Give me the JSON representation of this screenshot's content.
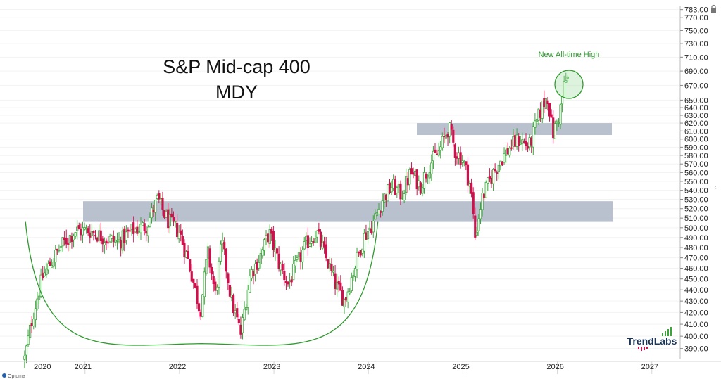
{
  "chart_data": {
    "type": "candlestick",
    "title": "S&P Mid-cap 400",
    "subtitle": "MDY",
    "annotation": "New All-time High",
    "brand": "TrendLabs",
    "footer": "Optuma",
    "x_axis": {
      "labels": [
        "2020",
        "2021",
        "2022",
        "2023",
        "2024",
        "2025",
        "2026",
        "2027"
      ],
      "range": [
        2020.1,
        2027.3
      ]
    },
    "y_axis": {
      "scale": "log",
      "range": [
        382,
        786
      ],
      "ticks": [
        783,
        770,
        750,
        730,
        710,
        690,
        670,
        650,
        640,
        630,
        620,
        610,
        600,
        590,
        580,
        570,
        560,
        550,
        540,
        530,
        520,
        510,
        500,
        490,
        480,
        470,
        460,
        450,
        440,
        430,
        420,
        410,
        400,
        390
      ]
    },
    "up_color": "#3aa63a",
    "down_color": "#d0104c",
    "zones": [
      {
        "y_low": 506,
        "y_high": 528
      },
      {
        "y_low": 605,
        "y_high": 620
      }
    ],
    "rounding_bottom": {
      "x_start": 2020.37,
      "x_end": 2024.1,
      "y_start": 506,
      "y_end": 506,
      "y_low": 394
    },
    "highlight": {
      "x": 2025.82,
      "y": 674
    },
    "path": [
      [
        2020.36,
        382
      ],
      [
        2020.45,
        418
      ],
      [
        2020.55,
        452
      ],
      [
        2020.75,
        482
      ],
      [
        2020.9,
        497
      ],
      [
        2021.05,
        497
      ],
      [
        2021.2,
        490
      ],
      [
        2021.35,
        485
      ],
      [
        2021.5,
        497
      ],
      [
        2021.65,
        502
      ],
      [
        2021.77,
        530
      ],
      [
        2021.87,
        508
      ],
      [
        2022.0,
        495
      ],
      [
        2022.1,
        465
      ],
      [
        2022.22,
        420
      ],
      [
        2022.3,
        475
      ],
      [
        2022.38,
        435
      ],
      [
        2022.45,
        485
      ],
      [
        2022.55,
        430
      ],
      [
        2022.65,
        402
      ],
      [
        2022.75,
        455
      ],
      [
        2022.85,
        470
      ],
      [
        2022.95,
        495
      ],
      [
        2023.05,
        465
      ],
      [
        2023.15,
        445
      ],
      [
        2023.25,
        465
      ],
      [
        2023.35,
        485
      ],
      [
        2023.45,
        495
      ],
      [
        2023.55,
        470
      ],
      [
        2023.65,
        445
      ],
      [
        2023.75,
        430
      ],
      [
        2023.85,
        460
      ],
      [
        2023.95,
        490
      ],
      [
        2024.05,
        505
      ],
      [
        2024.15,
        530
      ],
      [
        2024.25,
        545
      ],
      [
        2024.35,
        535
      ],
      [
        2024.45,
        560
      ],
      [
        2024.55,
        545
      ],
      [
        2024.65,
        570
      ],
      [
        2024.75,
        585
      ],
      [
        2024.85,
        615
      ],
      [
        2024.92,
        585
      ],
      [
        2025.0,
        575
      ],
      [
        2025.08,
        545
      ],
      [
        2025.13,
        490
      ],
      [
        2025.2,
        530
      ],
      [
        2025.3,
        555
      ],
      [
        2025.4,
        575
      ],
      [
        2025.5,
        590
      ],
      [
        2025.6,
        600
      ],
      [
        2025.7,
        590
      ],
      [
        2025.78,
        620
      ],
      [
        2025.85,
        645
      ],
      [
        2025.9,
        655
      ],
      [
        2025.95,
        605
      ],
      [
        2026.02,
        630
      ],
      [
        2026.08,
        675
      ],
      [
        2026.12,
        680
      ]
    ]
  }
}
